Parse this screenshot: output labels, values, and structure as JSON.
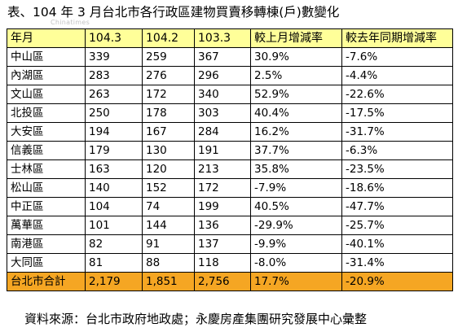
{
  "title": "表、104 年 3 月台北市各行政區建物買賣移轉棟(戶)數變化",
  "watermark": "Chinatimes",
  "table": {
    "headers": [
      "年月",
      "104.3",
      "104.2",
      "103.3",
      "較上月增減率",
      "較去年同期增減率"
    ],
    "rows": [
      [
        "中山區",
        "339",
        "259",
        "367",
        "30.9%",
        "-7.6%"
      ],
      [
        "內湖區",
        "283",
        "276",
        "296",
        "2.5%",
        "-4.4%"
      ],
      [
        "文山區",
        "263",
        "172",
        "340",
        "52.9%",
        "-22.6%"
      ],
      [
        "北投區",
        "250",
        "178",
        "303",
        "40.4%",
        "-17.5%"
      ],
      [
        "大安區",
        "194",
        "167",
        "284",
        "16.2%",
        "-31.7%"
      ],
      [
        "信義區",
        "179",
        "130",
        "191",
        "37.7%",
        "-6.3%"
      ],
      [
        "士林區",
        "163",
        "120",
        "213",
        "35.8%",
        "-23.5%"
      ],
      [
        "松山區",
        "140",
        "152",
        "172",
        "-7.9%",
        "-18.6%"
      ],
      [
        "中正區",
        "104",
        "74",
        "199",
        "40.5%",
        "-47.7%"
      ],
      [
        "萬華區",
        "101",
        "144",
        "136",
        "-29.9%",
        "-25.7%"
      ],
      [
        "南港區",
        "82",
        "91",
        "137",
        "-9.9%",
        "-40.1%"
      ],
      [
        "大同區",
        "81",
        "88",
        "118",
        "-8.0%",
        "-31.4%"
      ]
    ],
    "total": [
      "台北市合計",
      "2,179",
      "1,851",
      "2,756",
      "17.7%",
      "-20.9%"
    ]
  },
  "source": "資料來源：台北市政府地政處；永慶房產集團研究發展中心彙整",
  "colors": {
    "header_bg": "#ffff99",
    "total_bg": "#f5a623",
    "border": "#000000"
  }
}
